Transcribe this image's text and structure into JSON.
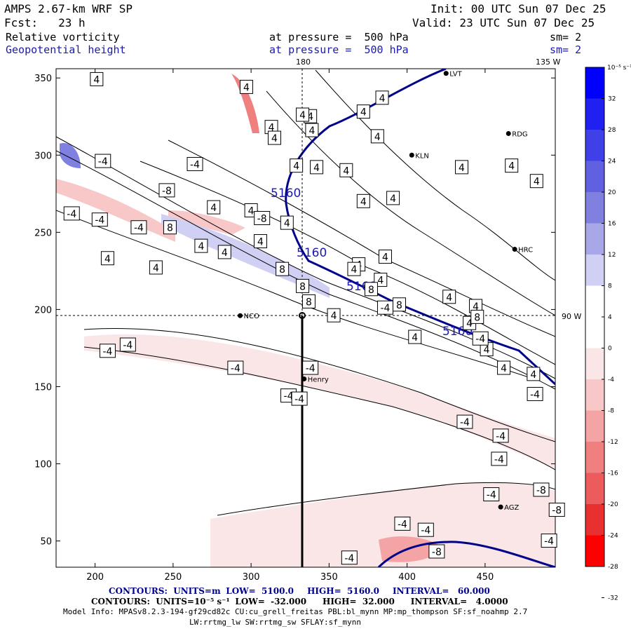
{
  "header": {
    "model": "AMPS 2.67-km WRF SP",
    "init": "Init: 00 UTC Sun 07 Dec 25",
    "fcst": "Fcst:   23 h",
    "valid": "Valid: 23 UTC Sun 07 Dec 25",
    "field1": "Relative vorticity",
    "field1_level": "at pressure =  500 hPa",
    "field1_sm": "sm= 2",
    "field2": "Geopotential height",
    "field2_level": "at pressure =  500 hPa",
    "field2_sm": "sm= 2"
  },
  "map_labels": {
    "lon_180": "180",
    "lon_135w": "135 W",
    "lat_90w": "90 W",
    "stations": [
      {
        "name": "NCO",
        "x": 293,
        "y": 196
      },
      {
        "name": "Henry",
        "x": 334,
        "y": 155
      },
      {
        "name": "KLN",
        "x": 403,
        "y": 300
      },
      {
        "name": "RDG",
        "x": 465,
        "y": 314
      },
      {
        "name": "HRC",
        "x": 469,
        "y": 239
      },
      {
        "name": "AGZ",
        "x": 460,
        "y": 72
      },
      {
        "name": "LVT",
        "x": 425,
        "y": 353
      }
    ]
  },
  "colorbar": {
    "unit": "10⁻⁵ s⁻¹",
    "ticks": [
      32,
      28,
      24,
      20,
      16,
      12,
      8,
      4,
      0,
      -4,
      -8,
      -12,
      -16,
      -20,
      -24,
      -28,
      -32
    ],
    "colors": {
      "pos": [
        "#0000ff",
        "#2020f0",
        "#4040e8",
        "#6060e0",
        "#8080e0",
        "#a8a8e8",
        "#d0d0f4"
      ],
      "neg": [
        "#fae6e6",
        "#f8c8c8",
        "#f4a4a4",
        "#f08080",
        "#ec5c5c",
        "#e83030",
        "#ff0000"
      ]
    }
  },
  "chart_data": {
    "type": "contour",
    "xlim": [
      175,
      495
    ],
    "ylim": [
      33,
      356
    ],
    "xticks": [
      200,
      250,
      300,
      350,
      400,
      450
    ],
    "yticks": [
      50,
      100,
      150,
      200,
      250,
      300,
      350
    ],
    "height_contours": {
      "levels_m": [
        5160
      ],
      "low": 5100.0,
      "high": 5160.0,
      "interval": 60.0,
      "line_labels": [
        "5160",
        "5160",
        "5160",
        "5160"
      ]
    },
    "vorticity_contours": {
      "low": -32.0,
      "high": 32.0,
      "interval": 4.0,
      "labels": [
        {
          "v": "4",
          "x": 201,
          "y": 349
        },
        {
          "v": "4",
          "x": 297,
          "y": 344
        },
        {
          "v": "4",
          "x": 372,
          "y": 328
        },
        {
          "v": "4",
          "x": 384,
          "y": 337
        },
        {
          "v": "4",
          "x": 338,
          "y": 325
        },
        {
          "v": "4",
          "x": 333,
          "y": 326
        },
        {
          "v": "4",
          "x": 313,
          "y": 318
        },
        {
          "v": "4",
          "x": 315,
          "y": 311
        },
        {
          "v": "4",
          "x": 339,
          "y": 316
        },
        {
          "v": "4",
          "x": 381,
          "y": 312
        },
        {
          "v": "4",
          "x": 467,
          "y": 293
        },
        {
          "v": "4",
          "x": 435,
          "y": 292
        },
        {
          "v": "4",
          "x": 483,
          "y": 283
        },
        {
          "v": "4",
          "x": 329,
          "y": 293
        },
        {
          "v": "4",
          "x": 342,
          "y": 292
        },
        {
          "v": "4",
          "x": 361,
          "y": 290
        },
        {
          "v": "4",
          "x": 372,
          "y": 270
        },
        {
          "v": "4",
          "x": 391,
          "y": 272
        },
        {
          "v": "4",
          "x": 276,
          "y": 266
        },
        {
          "v": "4",
          "x": 300,
          "y": 264
        },
        {
          "v": "4",
          "x": 323,
          "y": 256
        },
        {
          "v": "4",
          "x": 306,
          "y": 244
        },
        {
          "v": "4",
          "x": 268,
          "y": 241
        },
        {
          "v": "4",
          "x": 208,
          "y": 233
        },
        {
          "v": "4",
          "x": 239,
          "y": 227
        },
        {
          "v": "4",
          "x": 283,
          "y": 237
        },
        {
          "v": "4",
          "x": 369,
          "y": 229
        },
        {
          "v": "4",
          "x": 386,
          "y": 234
        },
        {
          "v": "4",
          "x": 366,
          "y": 226
        },
        {
          "v": "4",
          "x": 383,
          "y": 219
        },
        {
          "v": "4",
          "x": 427,
          "y": 208
        },
        {
          "v": "4",
          "x": 444,
          "y": 202
        },
        {
          "v": "4",
          "x": 353,
          "y": 196
        },
        {
          "v": "4",
          "x": 440,
          "y": 191
        },
        {
          "v": "4",
          "x": 405,
          "y": 182
        },
        {
          "v": "4",
          "x": 451,
          "y": 174
        },
        {
          "v": "4",
          "x": 462,
          "y": 162
        },
        {
          "v": "4",
          "x": 481,
          "y": 158
        },
        {
          "v": "8",
          "x": 248,
          "y": 253
        },
        {
          "v": "8",
          "x": 320,
          "y": 226
        },
        {
          "v": "8",
          "x": 333,
          "y": 215
        },
        {
          "v": "8",
          "x": 337,
          "y": 205
        },
        {
          "v": "8",
          "x": 377,
          "y": 213
        },
        {
          "v": "8",
          "x": 395,
          "y": 203
        },
        {
          "v": "8",
          "x": 445,
          "y": 195
        },
        {
          "v": "-4",
          "x": 205,
          "y": 296
        },
        {
          "v": "-4",
          "x": 264,
          "y": 294
        },
        {
          "v": "-4",
          "x": 185,
          "y": 262
        },
        {
          "v": "-4",
          "x": 203,
          "y": 258
        },
        {
          "v": "-4",
          "x": 228,
          "y": 253
        },
        {
          "v": "-4",
          "x": 386,
          "y": 201
        },
        {
          "v": "-4",
          "x": 447,
          "y": 181
        },
        {
          "v": "-4",
          "x": 221,
          "y": 177
        },
        {
          "v": "-4",
          "x": 208,
          "y": 173
        },
        {
          "v": "-4",
          "x": 290,
          "y": 162
        },
        {
          "v": "-4",
          "x": 338,
          "y": 162
        },
        {
          "v": "-4",
          "x": 324,
          "y": 144
        },
        {
          "v": "-4",
          "x": 331,
          "y": 142
        },
        {
          "v": "-4",
          "x": 482,
          "y": 145
        },
        {
          "v": "-4",
          "x": 437,
          "y": 127
        },
        {
          "v": "-4",
          "x": 460,
          "y": 118
        },
        {
          "v": "-4",
          "x": 459,
          "y": 103
        },
        {
          "v": "-4",
          "x": 454,
          "y": 80
        },
        {
          "v": "-4",
          "x": 397,
          "y": 61
        },
        {
          "v": "-4",
          "x": 412,
          "y": 57
        },
        {
          "v": "-4",
          "x": 491,
          "y": 50
        },
        {
          "v": "-4",
          "x": 363,
          "y": 39
        },
        {
          "v": "-8",
          "x": 246,
          "y": 277
        },
        {
          "v": "-8",
          "x": 307,
          "y": 259
        },
        {
          "v": "-8",
          "x": 486,
          "y": 83
        },
        {
          "v": "-8",
          "x": 496,
          "y": 70
        },
        {
          "v": "-8",
          "x": 419,
          "y": 43
        }
      ]
    }
  },
  "footer": {
    "line1_label": "CONTOURS:  UNITS=m",
    "line1_low": "LOW=  5100.0",
    "line1_high": "HIGH=  5160.0",
    "line1_int": "INTERVAL=   60.000",
    "line2_label": "CONTOURS:  UNITS=10⁻⁵ s⁻¹",
    "line2_low": "LOW=  -32.000",
    "line2_high": "HIGH=  32.000",
    "line2_int": "INTERVAL=   4.0000",
    "model_info": "Model Info: MPASv8.2.3-194-gf29cd82c CU:cu_grell_freitas PBL:bl_mynn MP:mp_thompson SF:sf_noahmp 2.7",
    "model_info2": "LW:rrtmg_lw SW:rrtmg_sw SFLAY:sf_mynn"
  }
}
